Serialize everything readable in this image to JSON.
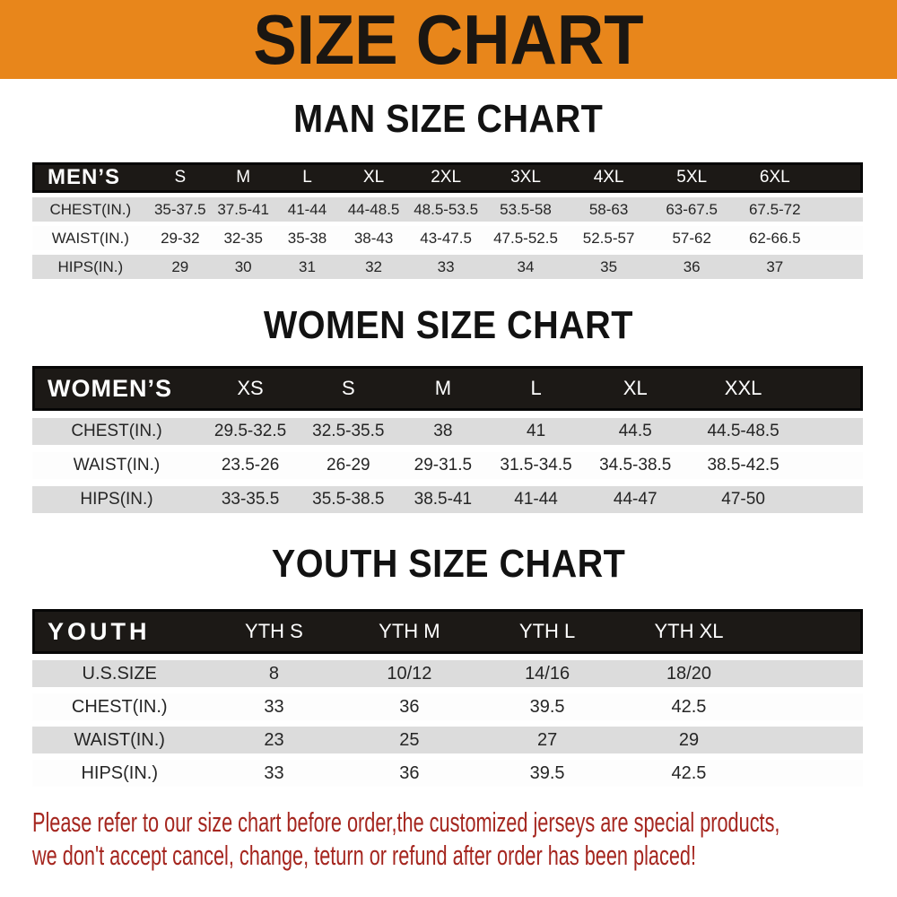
{
  "banner": {
    "title": "SIZE CHART"
  },
  "sections": [
    {
      "id": "men",
      "heading": "MAN SIZE CHART",
      "header_label": "MEN’S",
      "columns": [
        "S",
        "M",
        "L",
        "XL",
        "2XL",
        "3XL",
        "4XL",
        "5XL",
        "6XL"
      ],
      "rows": [
        {
          "label": "CHEST(IN.)",
          "values": [
            "35-37.5",
            "37.5-41",
            "41-44",
            "44-48.5",
            "48.5-53.5",
            "53.5-58",
            "58-63",
            "63-67.5",
            "67.5-72"
          ]
        },
        {
          "label": "WAIST(IN.)",
          "values": [
            "29-32",
            "32-35",
            "35-38",
            "38-43",
            "43-47.5",
            "47.5-52.5",
            "52.5-57",
            "57-62",
            "62-66.5"
          ]
        },
        {
          "label": "HIPS(IN.)",
          "values": [
            "29",
            "30",
            "31",
            "32",
            "33",
            "34",
            "35",
            "36",
            "37"
          ]
        }
      ]
    },
    {
      "id": "women",
      "heading": "WOMEN SIZE CHART",
      "header_label": "WOMEN’S",
      "columns": [
        "XS",
        "S",
        "M",
        "L",
        "XL",
        "XXL"
      ],
      "rows": [
        {
          "label": "CHEST(IN.)",
          "values": [
            "29.5-32.5",
            "32.5-35.5",
            "38",
            "41",
            "44.5",
            "44.5-48.5"
          ]
        },
        {
          "label": "WAIST(IN.)",
          "values": [
            "23.5-26",
            "26-29",
            "29-31.5",
            "31.5-34.5",
            "34.5-38.5",
            "38.5-42.5"
          ]
        },
        {
          "label": "HIPS(IN.)",
          "values": [
            "33-35.5",
            "35.5-38.5",
            "38.5-41",
            "41-44",
            "44-47",
            "47-50"
          ]
        }
      ]
    },
    {
      "id": "youth",
      "heading": "YOUTH SIZE CHART",
      "header_label": "YOUTH",
      "columns": [
        "YTH S",
        "YTH M",
        "YTH L",
        "YTH XL"
      ],
      "rows": [
        {
          "label": "U.S.SIZE",
          "values": [
            "8",
            "10/12",
            "14/16",
            "18/20"
          ]
        },
        {
          "label": "CHEST(IN.)",
          "values": [
            "33",
            "36",
            "39.5",
            "42.5"
          ]
        },
        {
          "label": "WAIST(IN.)",
          "values": [
            "23",
            "25",
            "27",
            "29"
          ]
        },
        {
          "label": "HIPS(IN.)",
          "values": [
            "33",
            "36",
            "39.5",
            "42.5"
          ]
        }
      ]
    }
  ],
  "footer_note": {
    "line1": "Please refer to our size chart before order,the customized jerseys are special products,",
    "line2": "we don't accept cancel, change, teturn or refund after order has been placed!"
  },
  "colors": {
    "banner_bg": "#E8861B",
    "banner_text": "#1A1612",
    "header_bar_bg": "#1C1916",
    "header_bar_border": "#070707",
    "header_bar_text": "#FFFFFF",
    "row_stripe_bg": "#DCDCDC",
    "row_plain_bg": "#FDFDFD",
    "cell_text": "#252525",
    "heading_text": "#121212",
    "note_text": "#A5261F"
  }
}
